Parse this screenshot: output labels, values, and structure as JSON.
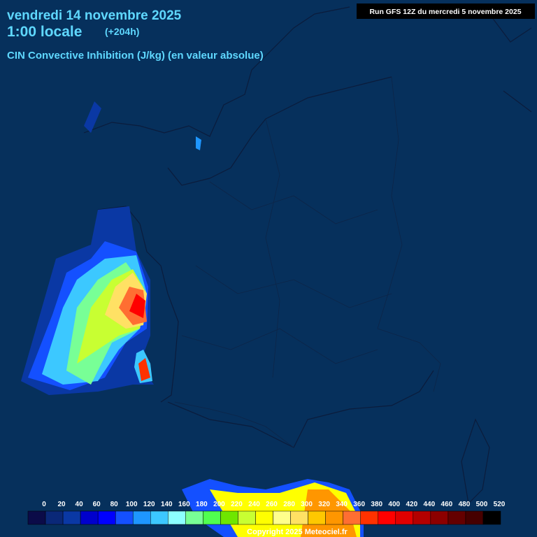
{
  "header": {
    "date": "vendredi 14 novembre 2025",
    "time": "1:00 locale",
    "lead": "(+204h)",
    "parameter": "CIN Convective Inhibition (J/kg) (en valeur absolue)",
    "run": "Run GFS 12Z du mercredi 5 novembre 2025"
  },
  "legend": {
    "labels": [
      0,
      20,
      40,
      60,
      80,
      100,
      120,
      140,
      160,
      180,
      200,
      220,
      240,
      260,
      280,
      300,
      320,
      340,
      360,
      380,
      400,
      420,
      440,
      460,
      480,
      500,
      520
    ],
    "colors": [
      "#0b0b48",
      "#0a2878",
      "#0a38a4",
      "#0000cc",
      "#0000ff",
      "#1450ff",
      "#1e96ff",
      "#3cc8ff",
      "#8cffff",
      "#78ff96",
      "#50ff50",
      "#6ee600",
      "#c8ff32",
      "#ffff00",
      "#ffff8c",
      "#ffe164",
      "#ffc800",
      "#ff9600",
      "#ff6e32",
      "#ff3200",
      "#ff0000",
      "#e10000",
      "#b40000",
      "#8c0000",
      "#640000",
      "#460000",
      "#000000"
    ]
  },
  "footer": {
    "copyright": "Copyright 2025 Meteociel.fr"
  }
}
